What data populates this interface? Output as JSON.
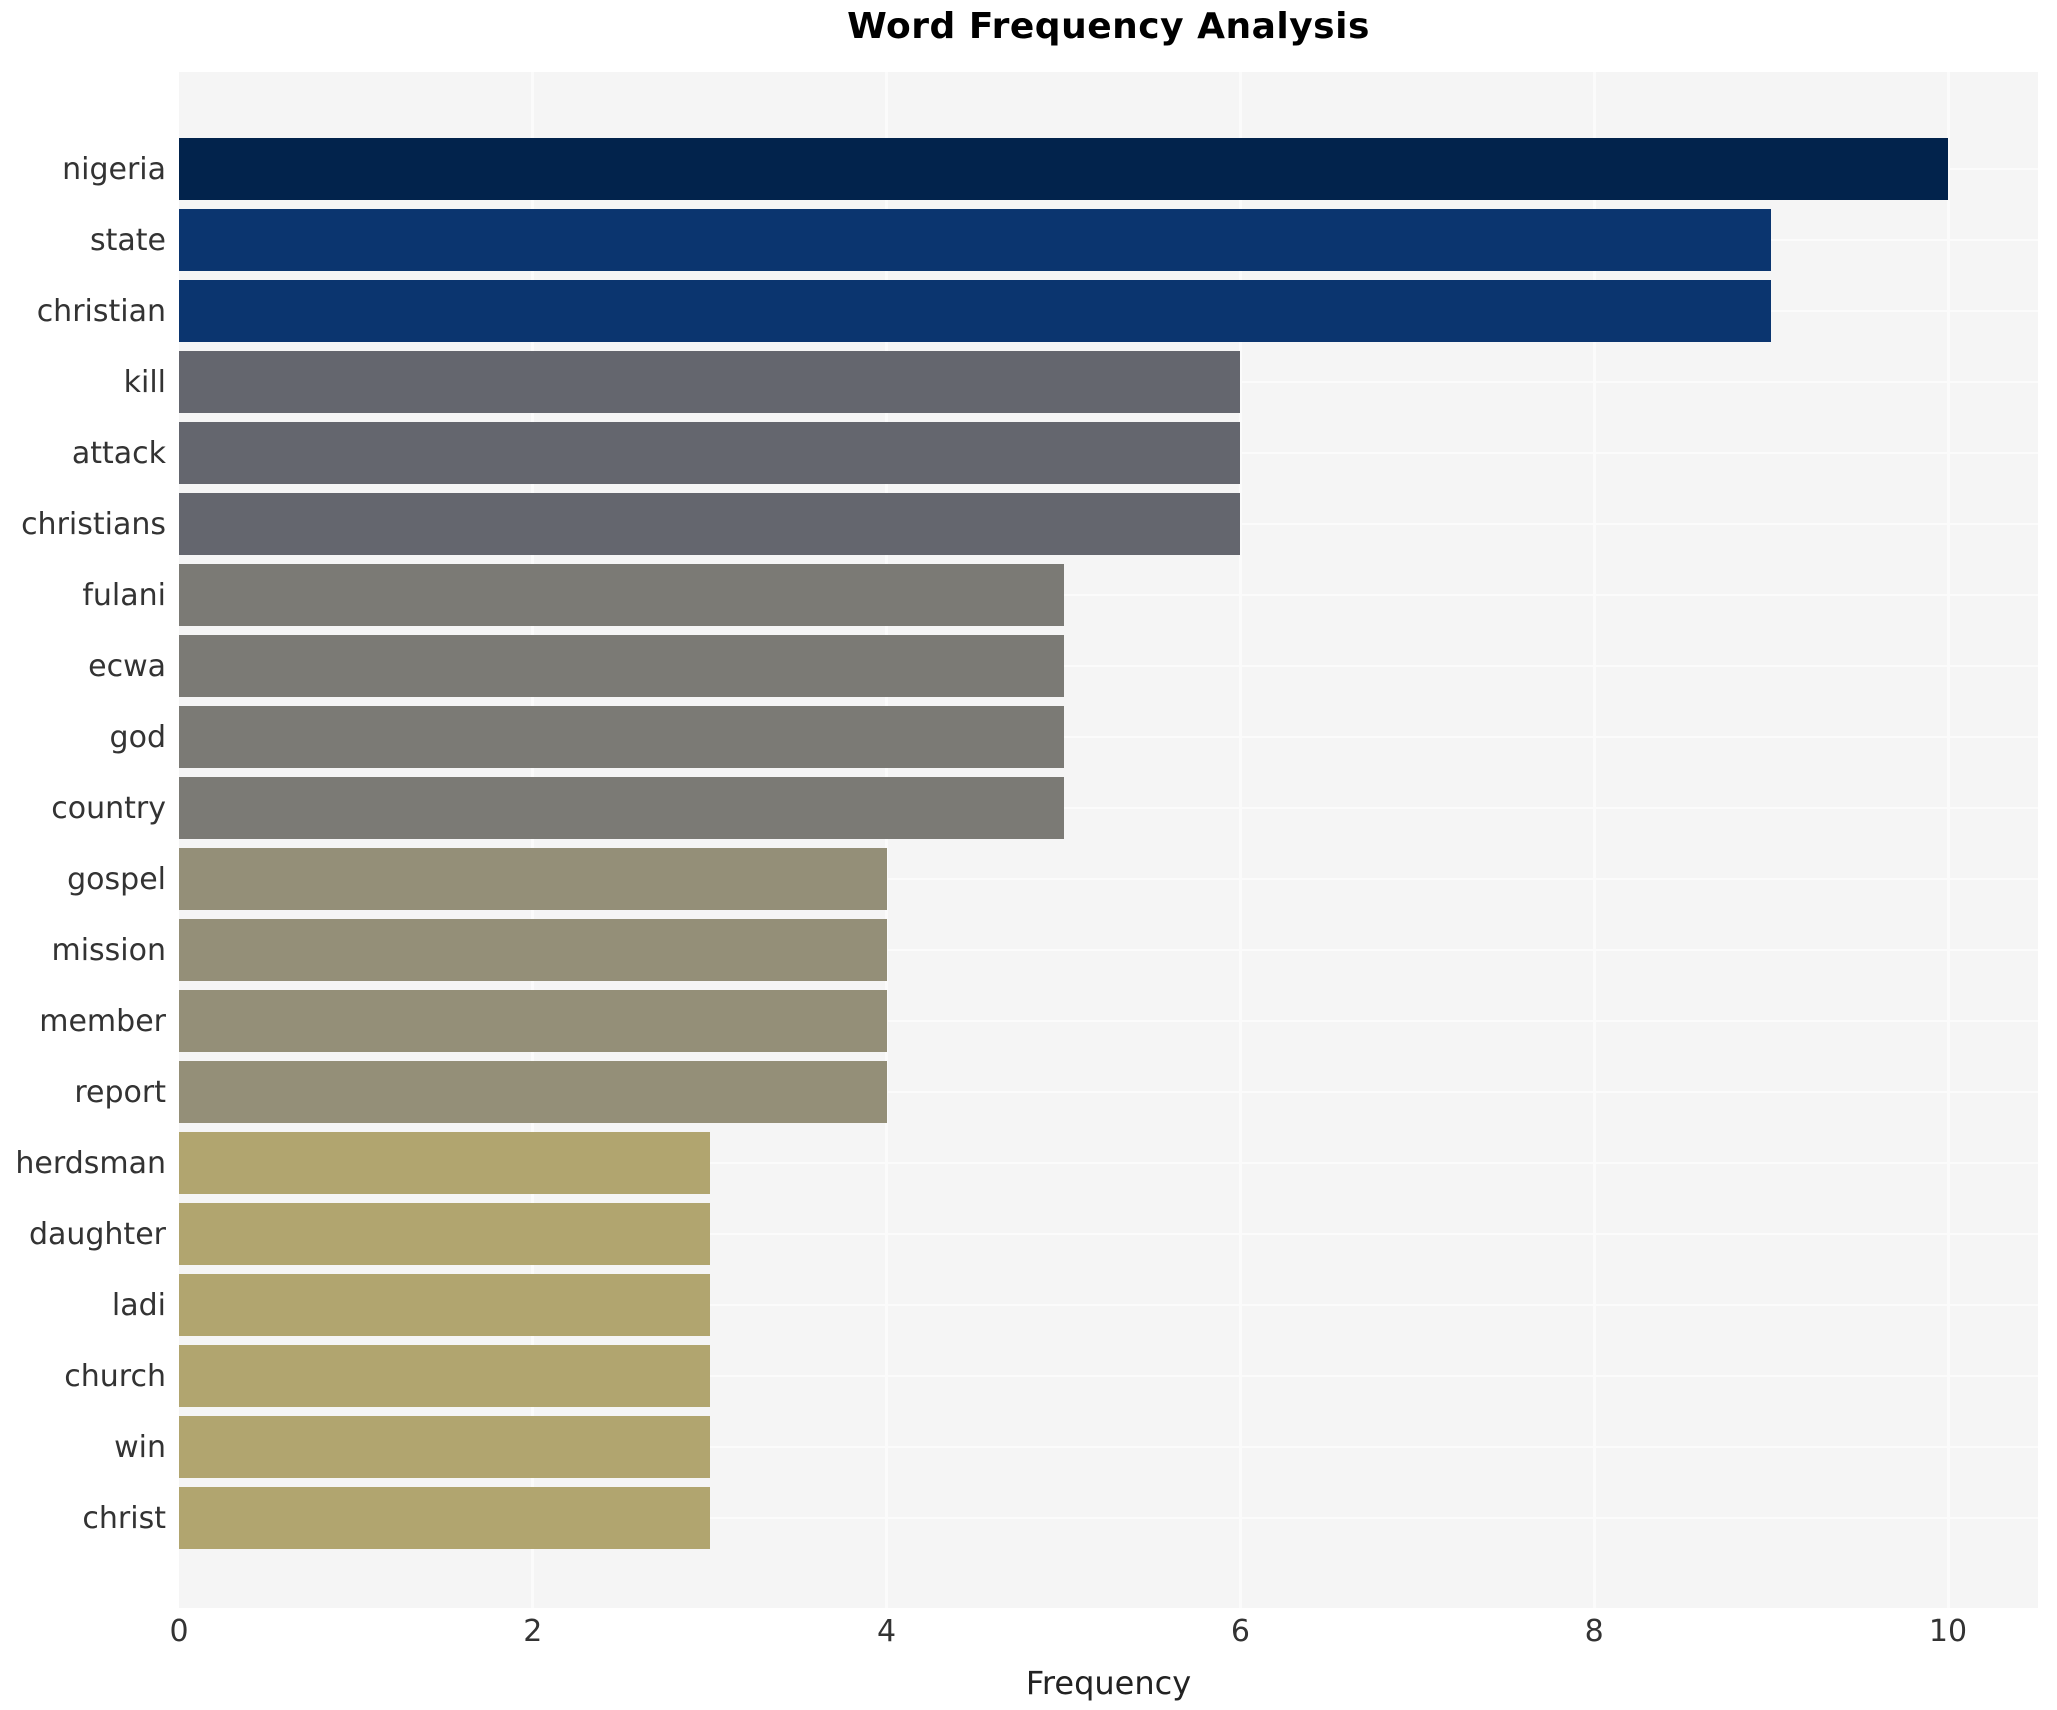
{
  "chart_data": {
    "type": "bar",
    "orientation": "horizontal",
    "title": "Word Frequency Analysis",
    "xlabel": "Frequency",
    "ylabel": "",
    "categories": [
      "nigeria",
      "state",
      "christian",
      "kill",
      "attack",
      "christians",
      "fulani",
      "ecwa",
      "god",
      "country",
      "gospel",
      "mission",
      "member",
      "report",
      "herdsman",
      "daughter",
      "ladi",
      "church",
      "win",
      "christ"
    ],
    "values": [
      10,
      9,
      9,
      6,
      6,
      6,
      5,
      5,
      5,
      5,
      4,
      4,
      4,
      4,
      3,
      3,
      3,
      3,
      3,
      3
    ],
    "bar_colors": [
      "#02234c",
      "#0b356f",
      "#0b356f",
      "#64666e",
      "#64666e",
      "#64666e",
      "#7b7a75",
      "#7b7a75",
      "#7b7a75",
      "#7b7a75",
      "#948f78",
      "#948f78",
      "#948f78",
      "#948f78",
      "#b1a56f",
      "#b1a56f",
      "#b1a56f",
      "#b1a56f",
      "#b1a56f",
      "#b1a56f"
    ],
    "xticks": [
      0,
      2,
      4,
      6,
      8,
      10
    ],
    "xlim": [
      0,
      10.5
    ],
    "grid": true,
    "legend": false,
    "plot_background": "#f5f5f5",
    "grid_color": "#fbfbfb",
    "tick_text_color": "#333333",
    "title_color": "#000000"
  }
}
